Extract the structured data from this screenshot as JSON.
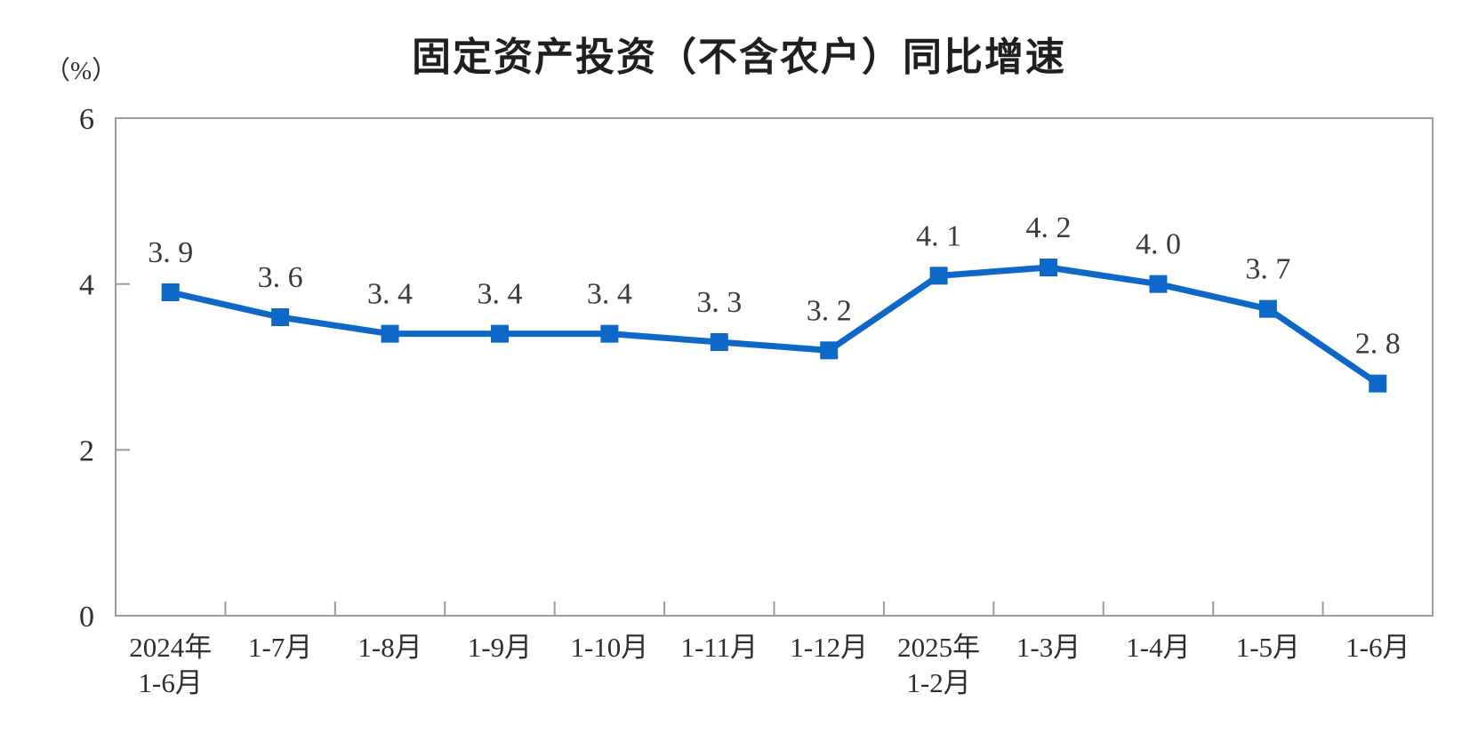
{
  "chart_data": {
    "type": "line",
    "title": "固定资产投资（不含农户）同比增速",
    "unit": "（%）",
    "categories": [
      "2024年\n1-6月",
      "1-7月",
      "1-8月",
      "1-9月",
      "1-10月",
      "1-11月",
      "1-12月",
      "2025年\n1-2月",
      "1-3月",
      "1-4月",
      "1-5月",
      "1-6月"
    ],
    "values": [
      3.9,
      3.6,
      3.4,
      3.4,
      3.4,
      3.3,
      3.2,
      4.1,
      4.2,
      4.0,
      3.7,
      2.8
    ],
    "point_labels": [
      "3. 9",
      "3. 6",
      "3. 4",
      "3. 4",
      "3. 4",
      "3. 3",
      "3. 2",
      "4. 1",
      "4. 2",
      "4. 0",
      "3. 7",
      "2. 8"
    ],
    "xlabel": "",
    "ylabel": "（%）",
    "ylim": [
      0,
      6
    ],
    "yticks": [
      0,
      2,
      4,
      6
    ],
    "grid": false,
    "legend": "none",
    "line_color": "#0e68c8",
    "marker": "square",
    "axis_color": "#9b9b9b",
    "label_color": "#2e2e2e"
  }
}
